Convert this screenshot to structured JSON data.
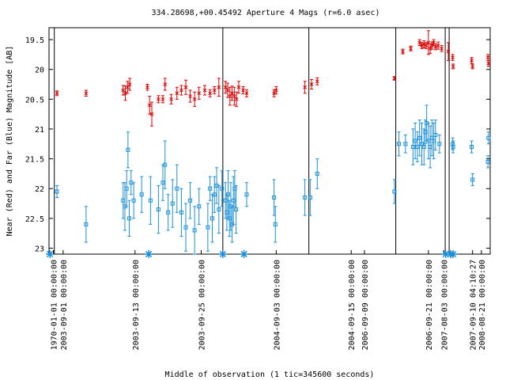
{
  "chart_data": {
    "type": "scatter",
    "title": "334.28698,+00.45492   Aperture 4 Mags (r=6.0 asec)",
    "xlabel": "Middle of observation (1 tic=345600 seconds)",
    "ylabel": "Near (Red) and Far (Blue) Magnitude [AB]",
    "ylim": [
      23.1,
      19.3
    ],
    "y_reversed": true,
    "xlim": [
      0,
      100
    ],
    "x_units": "tics",
    "y_ticks": [
      "19.5",
      "20",
      "20.5",
      "21",
      "21.5",
      "22",
      "22.5",
      "23"
    ],
    "y_tick_values": [
      19.5,
      20,
      20.5,
      21,
      21.5,
      22,
      22.5,
      23
    ],
    "x_tick_labels": [
      {
        "x": 1.0,
        "text": "1970-01-01 00:00:00"
      },
      {
        "x": 3.2,
        "text": "2003-09-01 00:00:00"
      },
      {
        "x": 19.5,
        "text": "2003-09-13 00:00:00"
      },
      {
        "x": 34.5,
        "text": "2003-09-25 00:00:00"
      },
      {
        "x": 51.5,
        "text": "2004-09-03 00:00:00"
      },
      {
        "x": 68.5,
        "text": "2004-09-15 00:00:00"
      },
      {
        "x": 71.5,
        "text": "2006-09-09 00:00:00"
      },
      {
        "x": 86.0,
        "text": "2006-09-21 00:00:00"
      },
      {
        "x": 89.5,
        "text": "2007-08-03 00:00:00"
      },
      {
        "x": 96.0,
        "text": "2007-09-10 04:10:27"
      },
      {
        "x": 98.0,
        "text": "2008-08-21 00:00:00"
      }
    ],
    "vertical_lines": [
      1.2,
      39.4,
      58.9,
      78.6,
      89.8,
      90.7
    ],
    "markers": [
      0.2,
      22.6,
      39.4,
      44.2,
      89.9,
      91.0,
      91.6
    ],
    "series": [
      {
        "color": "#dd0000",
        "symbol": "x",
        "points": [
          {
            "x": 1.8,
            "y": 20.4,
            "e": 0.04
          },
          {
            "x": 8.4,
            "y": 20.4,
            "e": 0.05
          },
          {
            "x": 16.8,
            "y": 20.35,
            "e": 0.08
          },
          {
            "x": 17.3,
            "y": 20.4,
            "e": 0.12
          },
          {
            "x": 17.8,
            "y": 20.3,
            "e": 0.1
          },
          {
            "x": 18.3,
            "y": 20.25,
            "e": 0.1
          },
          {
            "x": 22.3,
            "y": 20.3,
            "e": 0.05
          },
          {
            "x": 22.8,
            "y": 20.6,
            "e": 0.15
          },
          {
            "x": 23.3,
            "y": 20.75,
            "e": 0.2
          },
          {
            "x": 24.8,
            "y": 20.5,
            "e": 0.06
          },
          {
            "x": 25.8,
            "y": 20.5,
            "e": 0.06
          },
          {
            "x": 26.3,
            "y": 20.25,
            "e": 0.1
          },
          {
            "x": 27.7,
            "y": 20.5,
            "e": 0.08
          },
          {
            "x": 29.0,
            "y": 20.4,
            "e": 0.1
          },
          {
            "x": 30.0,
            "y": 20.35,
            "e": 0.08
          },
          {
            "x": 31.0,
            "y": 20.3,
            "e": 0.12
          },
          {
            "x": 32.0,
            "y": 20.45,
            "e": 0.1
          },
          {
            "x": 33.0,
            "y": 20.5,
            "e": 0.12
          },
          {
            "x": 34.0,
            "y": 20.4,
            "e": 0.1
          },
          {
            "x": 35.3,
            "y": 20.35,
            "e": 0.08
          },
          {
            "x": 36.5,
            "y": 20.4,
            "e": 0.06
          },
          {
            "x": 37.5,
            "y": 20.35,
            "e": 0.06
          },
          {
            "x": 38.5,
            "y": 20.3,
            "e": 0.15
          },
          {
            "x": 40.0,
            "y": 20.3,
            "e": 0.1
          },
          {
            "x": 40.5,
            "y": 20.35,
            "e": 0.12
          },
          {
            "x": 41.0,
            "y": 20.45,
            "e": 0.15
          },
          {
            "x": 41.5,
            "y": 20.4,
            "e": 0.12
          },
          {
            "x": 42.0,
            "y": 20.45,
            "e": 0.15
          },
          {
            "x": 42.5,
            "y": 20.5,
            "e": 0.12
          },
          {
            "x": 43.0,
            "y": 20.3,
            "e": 0.1
          },
          {
            "x": 44.0,
            "y": 20.35,
            "e": 0.06
          },
          {
            "x": 44.8,
            "y": 20.4,
            "e": 0.06
          },
          {
            "x": 51.0,
            "y": 20.4,
            "e": 0.06
          },
          {
            "x": 51.5,
            "y": 20.35,
            "e": 0.06
          },
          {
            "x": 58.0,
            "y": 20.3,
            "e": 0.1
          },
          {
            "x": 59.5,
            "y": 20.25,
            "e": 0.08
          },
          {
            "x": 60.8,
            "y": 20.2,
            "e": 0.06
          },
          {
            "x": 78.3,
            "y": 20.15,
            "e": 0.03
          },
          {
            "x": 80.2,
            "y": 19.7,
            "e": 0.04
          },
          {
            "x": 82.0,
            "y": 19.65,
            "e": 0.04
          },
          {
            "x": 84.0,
            "y": 19.55,
            "e": 0.05
          },
          {
            "x": 84.5,
            "y": 19.6,
            "e": 0.05
          },
          {
            "x": 85.0,
            "y": 19.58,
            "e": 0.06
          },
          {
            "x": 85.5,
            "y": 19.6,
            "e": 0.05
          },
          {
            "x": 86.0,
            "y": 19.55,
            "e": 0.2
          },
          {
            "x": 86.4,
            "y": 19.65,
            "e": 0.08
          },
          {
            "x": 86.8,
            "y": 19.6,
            "e": 0.06
          },
          {
            "x": 87.2,
            "y": 19.55,
            "e": 0.05
          },
          {
            "x": 87.6,
            "y": 19.62,
            "e": 0.05
          },
          {
            "x": 88.2,
            "y": 19.6,
            "e": 0.06
          },
          {
            "x": 89.0,
            "y": 19.65,
            "e": 0.05
          },
          {
            "x": 90.5,
            "y": 19.7,
            "e": 0.15
          },
          {
            "x": 91.5,
            "y": 19.8,
            "e": 0.05
          },
          {
            "x": 91.6,
            "y": 19.95,
            "e": 0.04
          },
          {
            "x": 95.8,
            "y": 19.85,
            "e": 0.05
          },
          {
            "x": 96.0,
            "y": 19.95,
            "e": 0.04
          },
          {
            "x": 99.5,
            "y": 19.8,
            "e": 0.05
          },
          {
            "x": 99.6,
            "y": 19.9,
            "e": 0.05
          }
        ]
      },
      {
        "color": "#1a8fdd",
        "symbol": "square",
        "points": [
          {
            "x": 1.8,
            "y": 22.05,
            "e": 0.1
          },
          {
            "x": 8.4,
            "y": 22.6,
            "e": 0.3
          },
          {
            "x": 16.8,
            "y": 22.2,
            "e": 0.3
          },
          {
            "x": 17.2,
            "y": 22.3,
            "e": 0.4
          },
          {
            "x": 17.6,
            "y": 22.0,
            "e": 0.3
          },
          {
            "x": 17.9,
            "y": 21.35,
            "e": 0.3
          },
          {
            "x": 18.2,
            "y": 22.5,
            "e": 0.3
          },
          {
            "x": 18.6,
            "y": 21.9,
            "e": 0.2
          },
          {
            "x": 19.2,
            "y": 22.2,
            "e": 0.3
          },
          {
            "x": 21.0,
            "y": 22.1,
            "e": 0.3
          },
          {
            "x": 23.0,
            "y": 22.2,
            "e": 0.4
          },
          {
            "x": 24.8,
            "y": 22.35,
            "e": 0.4
          },
          {
            "x": 25.8,
            "y": 21.9,
            "e": 0.3
          },
          {
            "x": 26.3,
            "y": 21.6,
            "e": 0.4
          },
          {
            "x": 27.0,
            "y": 22.4,
            "e": 0.3
          },
          {
            "x": 28.0,
            "y": 22.25,
            "e": 0.4
          },
          {
            "x": 29.0,
            "y": 22.0,
            "e": 0.4
          },
          {
            "x": 30.0,
            "y": 22.4,
            "e": 0.4
          },
          {
            "x": 31.0,
            "y": 22.65,
            "e": 0.4
          },
          {
            "x": 32.0,
            "y": 22.2,
            "e": 0.3
          },
          {
            "x": 33.0,
            "y": 22.7,
            "e": 0.4
          },
          {
            "x": 34.0,
            "y": 22.3,
            "e": 0.3
          },
          {
            "x": 36.0,
            "y": 22.65,
            "e": 0.4
          },
          {
            "x": 36.5,
            "y": 22.0,
            "e": 0.2
          },
          {
            "x": 37.0,
            "y": 22.5,
            "e": 0.4
          },
          {
            "x": 37.5,
            "y": 22.1,
            "e": 0.3
          },
          {
            "x": 38.0,
            "y": 21.95,
            "e": 0.3
          },
          {
            "x": 38.5,
            "y": 22.35,
            "e": 0.4
          },
          {
            "x": 39.2,
            "y": 22.0,
            "e": 0.3
          },
          {
            "x": 40.0,
            "y": 22.2,
            "e": 0.3
          },
          {
            "x": 40.3,
            "y": 22.4,
            "e": 0.3
          },
          {
            "x": 40.6,
            "y": 22.1,
            "e": 0.4
          },
          {
            "x": 40.9,
            "y": 22.5,
            "e": 0.3
          },
          {
            "x": 41.2,
            "y": 22.3,
            "e": 0.4
          },
          {
            "x": 41.5,
            "y": 22.6,
            "e": 0.3
          },
          {
            "x": 41.8,
            "y": 22.2,
            "e": 0.4
          },
          {
            "x": 42.1,
            "y": 22.0,
            "e": 0.3
          },
          {
            "x": 42.4,
            "y": 22.35,
            "e": 0.4
          },
          {
            "x": 44.8,
            "y": 22.1,
            "e": 0.2
          },
          {
            "x": 51.0,
            "y": 22.15,
            "e": 0.3
          },
          {
            "x": 51.3,
            "y": 22.6,
            "e": 0.3
          },
          {
            "x": 58.0,
            "y": 22.15,
            "e": 0.3
          },
          {
            "x": 59.2,
            "y": 22.15,
            "e": 0.3
          },
          {
            "x": 60.8,
            "y": 21.75,
            "e": 0.25
          },
          {
            "x": 78.3,
            "y": 22.05,
            "e": 0.2
          },
          {
            "x": 79.3,
            "y": 21.25,
            "e": 0.2
          },
          {
            "x": 80.8,
            "y": 21.25,
            "e": 0.15
          },
          {
            "x": 82.5,
            "y": 21.3,
            "e": 0.3
          },
          {
            "x": 83.0,
            "y": 21.2,
            "e": 0.3
          },
          {
            "x": 83.5,
            "y": 21.3,
            "e": 0.25
          },
          {
            "x": 84.0,
            "y": 21.15,
            "e": 0.3
          },
          {
            "x": 84.5,
            "y": 21.25,
            "e": 0.35
          },
          {
            "x": 85.0,
            "y": 21.3,
            "e": 0.3
          },
          {
            "x": 85.3,
            "y": 21.05,
            "e": 0.2
          },
          {
            "x": 85.6,
            "y": 20.9,
            "e": 0.3
          },
          {
            "x": 86.0,
            "y": 21.2,
            "e": 0.3
          },
          {
            "x": 86.4,
            "y": 21.3,
            "e": 0.35
          },
          {
            "x": 86.8,
            "y": 21.15,
            "e": 0.3
          },
          {
            "x": 87.2,
            "y": 21.2,
            "e": 0.3
          },
          {
            "x": 87.6,
            "y": 21.1,
            "e": 0.25
          },
          {
            "x": 88.5,
            "y": 21.25,
            "e": 0.15
          },
          {
            "x": 91.5,
            "y": 21.25,
            "e": 0.1
          },
          {
            "x": 91.6,
            "y": 21.3,
            "e": 0.1
          },
          {
            "x": 95.8,
            "y": 21.3,
            "e": 0.1
          },
          {
            "x": 96.0,
            "y": 21.85,
            "e": 0.1
          },
          {
            "x": 99.5,
            "y": 21.55,
            "e": 0.1
          },
          {
            "x": 99.6,
            "y": 21.15,
            "e": 0.1
          }
        ]
      }
    ]
  }
}
